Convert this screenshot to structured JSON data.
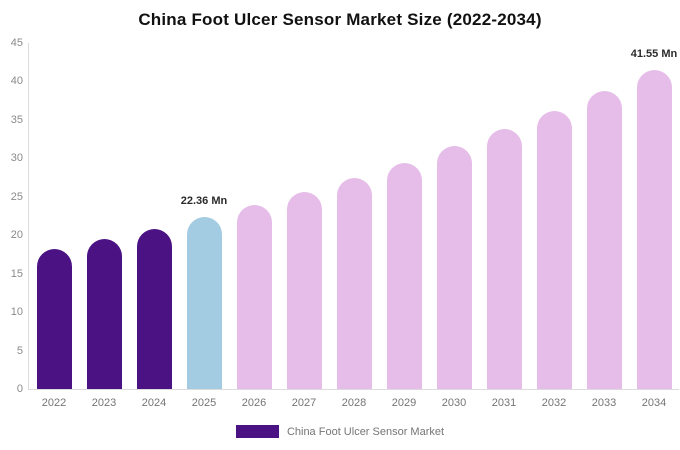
{
  "chart_data": {
    "type": "bar",
    "title": "China Foot Ulcer Sensor Market Size (2022-2034)",
    "categories": [
      "2022",
      "2023",
      "2024",
      "2025",
      "2026",
      "2027",
      "2028",
      "2029",
      "2030",
      "2031",
      "2032",
      "2033",
      "2034"
    ],
    "values": [
      18.19,
      19.48,
      20.87,
      22.36,
      23.95,
      25.66,
      27.49,
      29.45,
      31.55,
      33.8,
      36.21,
      38.79,
      41.55
    ],
    "bar_colors": [
      "#4B1283",
      "#4B1283",
      "#4B1283",
      "#A3CBE1",
      "#E5BDE8",
      "#E5BDE8",
      "#E5BDE8",
      "#E5BDE8",
      "#E5BDE8",
      "#E5BDE8",
      "#E5BDE8",
      "#E5BDE8",
      "#E5BDE8"
    ],
    "annotations": [
      {
        "category": "2025",
        "text": "22.36 Mn"
      },
      {
        "category": "2034",
        "text": "41.55 Mn"
      }
    ],
    "xlabel": "",
    "ylabel": "",
    "ylim": [
      0,
      45
    ],
    "yticks": [
      0,
      5,
      10,
      15,
      20,
      25,
      30,
      35,
      40,
      45
    ],
    "grid": false,
    "legend": {
      "position": "bottom",
      "items": [
        {
          "label": "China Foot Ulcer Sensor Market",
          "color": "#4B1283"
        }
      ]
    }
  },
  "colors": {
    "background": "#FFFFFF",
    "axis_line": "#DCDCDC",
    "y_tick_text": "#8A8A8A",
    "x_tick_text": "#757575",
    "annotation_text": "#2B2B2B",
    "title_text": "#111111",
    "legend_text": "#757575"
  }
}
